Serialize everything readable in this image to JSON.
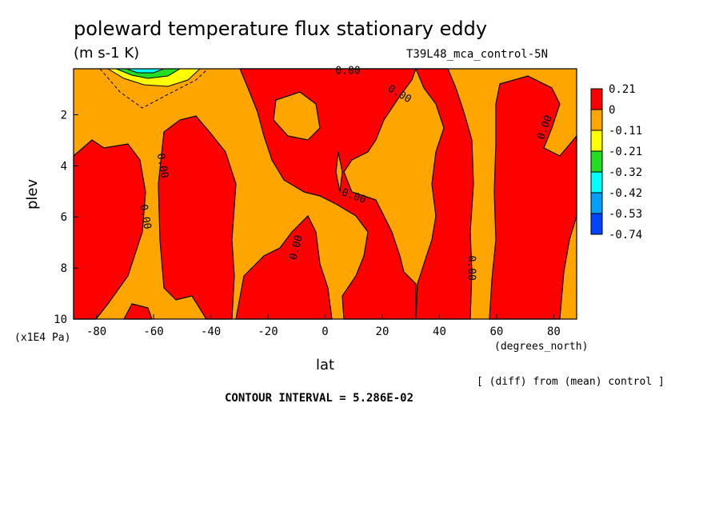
{
  "chart_data": {
    "type": "heatmap",
    "title": "poleward temperature flux stationary eddy",
    "units": "(m s-1 K)",
    "run_label": "T39L48_mca_control-5N",
    "xlabel": "lat",
    "x_units": "(degrees_north)",
    "ylabel": "plev",
    "y_units": "(x1E4 Pa)",
    "note": "[ (diff) from (mean) control ]",
    "contour_interval": "CONTOUR INTERVAL = 5.286E-02",
    "xlim": [
      -88,
      88
    ],
    "ylim": [
      10,
      0.2
    ],
    "x_ticks": [
      "-80",
      "-60",
      "-40",
      "-20",
      "0",
      "20",
      "40",
      "60",
      "80"
    ],
    "y_ticks": [
      "2",
      "4",
      "6",
      "8",
      "10"
    ],
    "contour_labels": [
      {
        "text": "0.00",
        "x": 8,
        "y": 0.3
      },
      {
        "text": "0.00",
        "x": 26,
        "y": 1.2
      },
      {
        "text": "0.00",
        "x": 77,
        "y": 2.5
      },
      {
        "text": "0.00",
        "x": -57,
        "y": 4.0
      },
      {
        "text": "0.00",
        "x": 10,
        "y": 5.2
      },
      {
        "text": "0.00",
        "x": -63,
        "y": 6.0
      },
      {
        "text": "0.00",
        "x": -10,
        "y": 7.2
      },
      {
        "text": "0.00",
        "x": 51,
        "y": 8.0
      }
    ],
    "colorbar": {
      "labels": [
        "0.21",
        "0",
        "-0.11",
        "-0.21",
        "-0.32",
        "-0.42",
        "-0.53",
        "-0.74"
      ],
      "colors": [
        "#ff0000",
        "#ffa500",
        "#ffff00",
        "#22dd22",
        "#00ffff",
        "#00a0ff",
        "#0044ff"
      ]
    },
    "colors": {
      "positive": "#ff0000",
      "near_zero": "#ffa500"
    }
  }
}
